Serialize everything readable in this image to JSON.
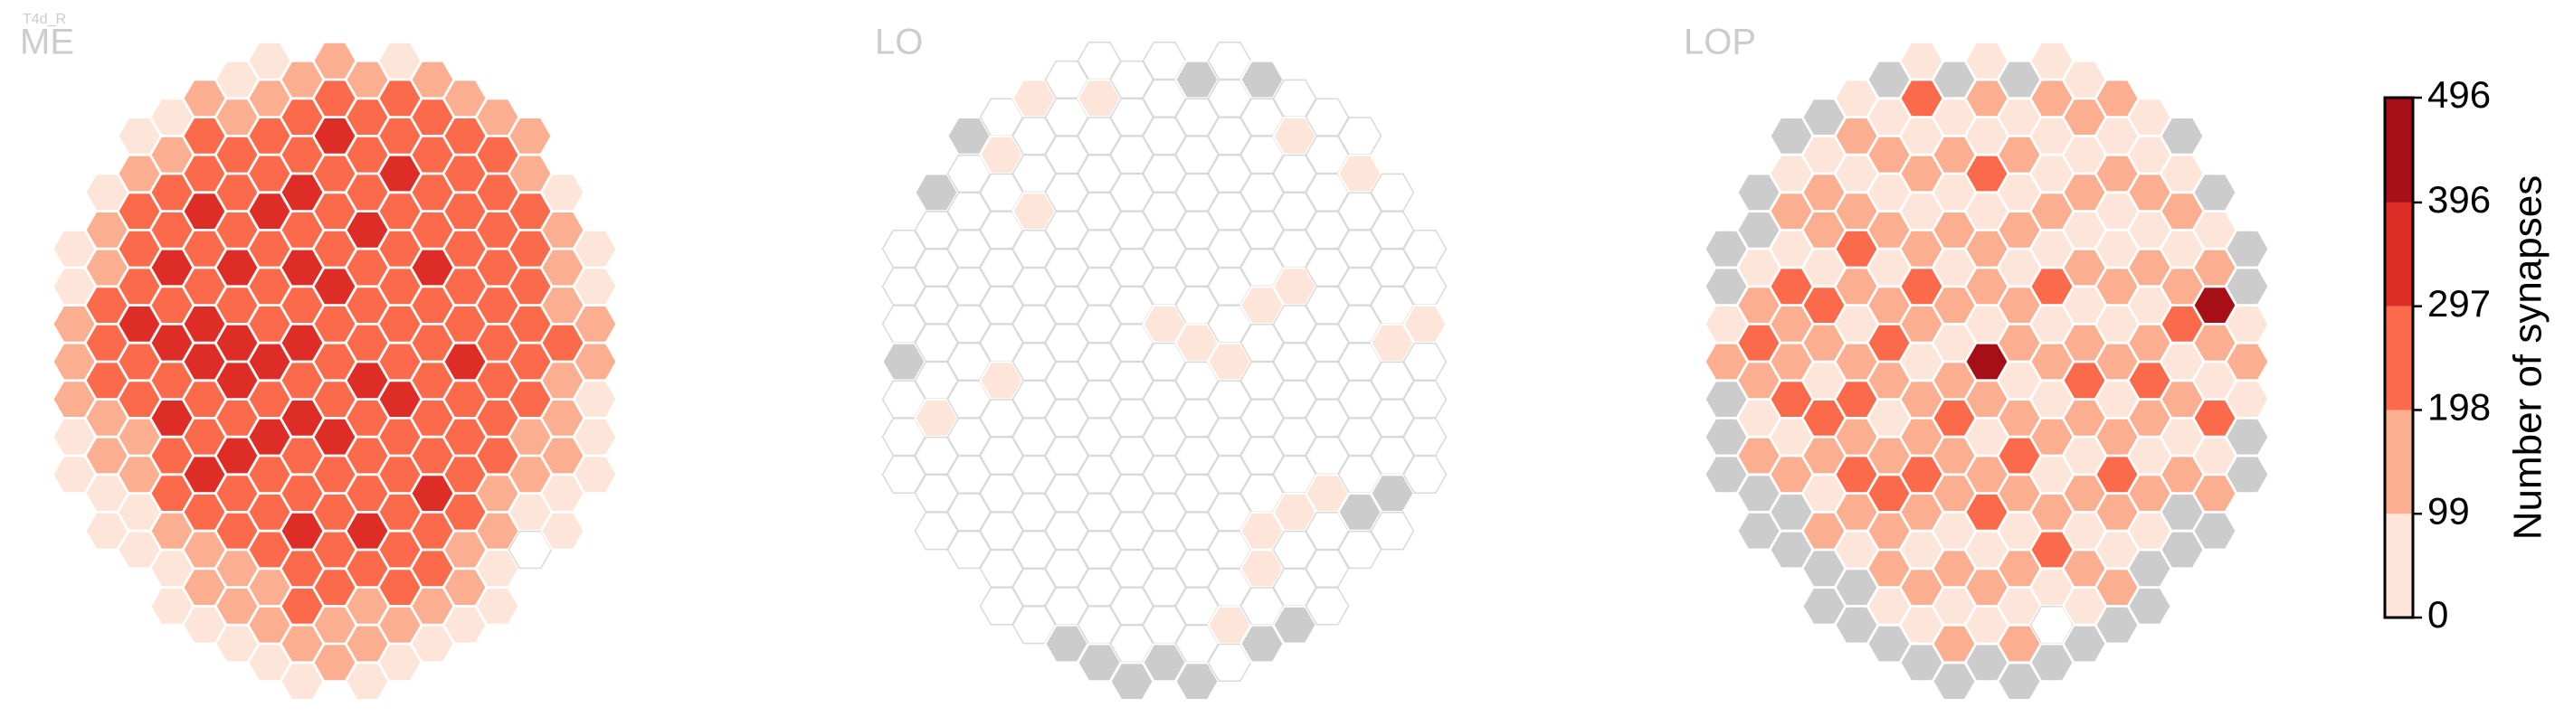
{
  "chart_data": {
    "type": "hexmap",
    "subtitle": "T4d_R",
    "panels": [
      {
        "title": "ME",
        "columns": [
          {
            "start": 5,
            "values": [
              40,
              40,
              150,
              150,
              150,
              40,
              40
            ]
          },
          {
            "start": 3,
            "values": [
              40,
              150,
              150,
              250,
              250,
              250,
              150,
              150,
              40,
              40
            ]
          },
          {
            "start": 2,
            "values": [
              40,
              150,
              250,
              250,
              250,
              350,
              250,
              250,
              150,
              150,
              40,
              40
            ]
          },
          {
            "start": 1,
            "values": [
              40,
              150,
              250,
              250,
              350,
              250,
              350,
              250,
              350,
              250,
              250,
              150,
              40,
              40
            ]
          },
          {
            "start": 1,
            "values": [
              150,
              250,
              250,
              350,
              250,
              250,
              350,
              350,
              250,
              250,
              350,
              250,
              150,
              150,
              40
            ]
          },
          {
            "start": 0,
            "values": [
              40,
              150,
              250,
              250,
              250,
              350,
              250,
              350,
              350,
              250,
              350,
              250,
              250,
              150,
              150,
              40
            ]
          },
          {
            "start": 0,
            "values": [
              40,
              150,
              250,
              250,
              350,
              250,
              250,
              250,
              350,
              250,
              350,
              250,
              250,
              250,
              150,
              150,
              40
            ]
          },
          {
            "start": 0,
            "values": [
              150,
              250,
              250,
              350,
              250,
              350,
              250,
              350,
              250,
              350,
              250,
              250,
              350,
              250,
              250,
              150,
              40
            ]
          },
          {
            "start": 0,
            "values": [
              150,
              250,
              350,
              250,
              250,
              250,
              350,
              250,
              250,
              250,
              350,
              250,
              250,
              250,
              250,
              150,
              150
            ]
          },
          {
            "start": 0,
            "values": [
              150,
              250,
              250,
              250,
              350,
              250,
              250,
              250,
              350,
              250,
              250,
              250,
              350,
              250,
              150,
              150,
              40
            ]
          },
          {
            "start": 0,
            "values": [
              40,
              250,
              250,
              350,
              250,
              250,
              250,
              250,
              250,
              350,
              250,
              250,
              250,
              250,
              250,
              150,
              40
            ]
          },
          {
            "start": 0,
            "values": [
              150,
              250,
              250,
              250,
              250,
              350,
              250,
              250,
              250,
              250,
              250,
              350,
              250,
              250,
              150,
              40
            ]
          },
          {
            "start": 1,
            "values": [
              150,
              250,
              250,
              250,
              250,
              250,
              250,
              350,
              250,
              250,
              250,
              250,
              150,
              150,
              40
            ]
          },
          {
            "start": 1,
            "values": [
              150,
              250,
              250,
              250,
              250,
              250,
              250,
              250,
              250,
              250,
              150,
              150,
              40,
              40
            ]
          },
          {
            "start": 2,
            "values": [
              150,
              150,
              250,
              250,
              250,
              250,
              250,
              250,
              150,
              150,
              40,
              0
            ]
          },
          {
            "start": 3,
            "values": [
              40,
              150,
              150,
              150,
              250,
              150,
              150,
              150,
              40,
              40
            ]
          },
          {
            "start": 5,
            "values": [
              40,
              40,
              150,
              150,
              40,
              40,
              40
            ]
          }
        ]
      },
      {
        "title": "LO",
        "columns": [
          {
            "start": 5,
            "values": [
              0,
              0,
              0,
              null,
              0,
              0,
              0
            ]
          },
          {
            "start": 3,
            "values": [
              null,
              0,
              0,
              0,
              0,
              0,
              40,
              0,
              0,
              0
            ]
          },
          {
            "start": 2,
            "values": [
              null,
              0,
              0,
              0,
              0,
              0,
              0,
              0,
              0,
              0,
              0,
              0
            ]
          },
          {
            "start": 1,
            "values": [
              0,
              40,
              0,
              0,
              0,
              0,
              0,
              40,
              0,
              0,
              0,
              0,
              0,
              0
            ]
          },
          {
            "start": 1,
            "values": [
              40,
              0,
              0,
              40,
              0,
              0,
              0,
              0,
              0,
              0,
              0,
              0,
              0,
              0,
              0
            ]
          },
          {
            "start": 0,
            "values": [
              0,
              0,
              0,
              0,
              0,
              0,
              0,
              0,
              0,
              0,
              0,
              0,
              0,
              0,
              0,
              null
            ]
          },
          {
            "start": 0,
            "values": [
              0,
              40,
              0,
              0,
              0,
              0,
              0,
              0,
              0,
              0,
              0,
              0,
              0,
              0,
              0,
              0,
              null
            ]
          },
          {
            "start": 0,
            "values": [
              0,
              0,
              0,
              0,
              0,
              0,
              0,
              0,
              0,
              0,
              0,
              0,
              0,
              0,
              0,
              0,
              null
            ]
          },
          {
            "start": 0,
            "values": [
              0,
              0,
              0,
              0,
              0,
              0,
              0,
              40,
              0,
              0,
              0,
              0,
              0,
              0,
              0,
              0,
              null
            ]
          },
          {
            "start": 0,
            "values": [
              null,
              0,
              0,
              0,
              0,
              0,
              0,
              40,
              0,
              0,
              0,
              0,
              0,
              0,
              0,
              0,
              null
            ]
          },
          {
            "start": 0,
            "values": [
              0,
              0,
              0,
              0,
              0,
              0,
              0,
              0,
              40,
              0,
              0,
              0,
              0,
              0,
              0,
              40,
              0
            ]
          },
          {
            "start": 0,
            "values": [
              null,
              0,
              0,
              0,
              0,
              0,
              40,
              0,
              0,
              0,
              0,
              0,
              40,
              40,
              0,
              null
            ]
          },
          {
            "start": 1,
            "values": [
              0,
              40,
              0,
              0,
              0,
              40,
              0,
              0,
              0,
              0,
              0,
              40,
              0,
              0,
              null
            ]
          },
          {
            "start": 1,
            "values": [
              0,
              0,
              0,
              0,
              0,
              0,
              0,
              0,
              0,
              0,
              40,
              0,
              0,
              0
            ]
          },
          {
            "start": 2,
            "values": [
              0,
              40,
              0,
              0,
              0,
              0,
              0,
              0,
              0,
              0,
              null,
              0
            ]
          },
          {
            "start": 3,
            "values": [
              0,
              0,
              0,
              0,
              40,
              0,
              0,
              0,
              null,
              0
            ]
          },
          {
            "start": 5,
            "values": [
              0,
              0,
              40,
              0,
              0,
              0,
              0
            ]
          }
        ]
      },
      {
        "title": "LOP",
        "columns": [
          {
            "start": 5,
            "values": [
              null,
              null,
              40,
              150,
              null,
              null,
              null
            ]
          },
          {
            "start": 3,
            "values": [
              null,
              null,
              40,
              150,
              250,
              150,
              40,
              150,
              null,
              null
            ]
          },
          {
            "start": 2,
            "values": [
              null,
              40,
              150,
              40,
              250,
              150,
              150,
              250,
              40,
              150,
              null,
              null
            ]
          },
          {
            "start": 1,
            "values": [
              null,
              40,
              150,
              150,
              40,
              250,
              150,
              40,
              250,
              150,
              40,
              150,
              null,
              null
            ]
          },
          {
            "start": 1,
            "values": [
              40,
              150,
              40,
              150,
              250,
              150,
              40,
              150,
              250,
              150,
              250,
              150,
              40,
              null,
              null
            ]
          },
          {
            "start": 0,
            "values": [
              null,
              40,
              150,
              40,
              150,
              40,
              150,
              250,
              150,
              40,
              150,
              250,
              150,
              150,
              40,
              null
            ]
          },
          {
            "start": 0,
            "values": [
              40,
              250,
              40,
              150,
              40,
              150,
              250,
              150,
              40,
              150,
              150,
              250,
              150,
              40,
              150,
              40,
              null
            ]
          },
          {
            "start": 0,
            "values": [
              null,
              40,
              150,
              40,
              150,
              40,
              150,
              40,
              150,
              250,
              150,
              150,
              40,
              150,
              40,
              150,
              null
            ]
          },
          {
            "start": 0,
            "values": [
              40,
              150,
              40,
              250,
              40,
              150,
              150,
              40,
              450,
              150,
              40,
              150,
              250,
              40,
              150,
              40,
              null
            ]
          },
          {
            "start": 0,
            "values": [
              null,
              40,
              150,
              40,
              150,
              40,
              150,
              150,
              40,
              150,
              250,
              150,
              40,
              150,
              40,
              150,
              null
            ]
          },
          {
            "start": 0,
            "values": [
              40,
              150,
              40,
              40,
              150,
              40,
              250,
              40,
              150,
              40,
              150,
              40,
              150,
              250,
              40,
              0,
              null
            ]
          },
          {
            "start": 0,
            "values": [
              40,
              150,
              40,
              150,
              40,
              150,
              40,
              150,
              250,
              150,
              40,
              150,
              40,
              150,
              40,
              null
            ]
          },
          {
            "start": 1,
            "values": [
              150,
              40,
              150,
              40,
              40,
              150,
              40,
              150,
              40,
              150,
              250,
              150,
              40,
              150,
              null
            ]
          },
          {
            "start": 1,
            "values": [
              40,
              40,
              150,
              40,
              150,
              40,
              150,
              250,
              150,
              40,
              150,
              40,
              null,
              null
            ]
          },
          {
            "start": 2,
            "values": [
              null,
              40,
              150,
              40,
              150,
              250,
              40,
              150,
              40,
              150,
              null,
              null
            ]
          },
          {
            "start": 3,
            "values": [
              null,
              40,
              150,
              450,
              150,
              40,
              250,
              40,
              150,
              null
            ]
          },
          {
            "start": 5,
            "values": [
              null,
              null,
              40,
              150,
              40,
              null,
              null
            ]
          }
        ]
      }
    ],
    "colorbar": {
      "label": "Number of synapses",
      "ticks": [
        0,
        99,
        198,
        297,
        396,
        496
      ],
      "colors": [
        "#fee5d9",
        "#fcae91",
        "#fb6a4a",
        "#de2d26",
        "#a50f15"
      ],
      "zero_color": "#ffffff",
      "missing_color": "#cccccc"
    }
  }
}
